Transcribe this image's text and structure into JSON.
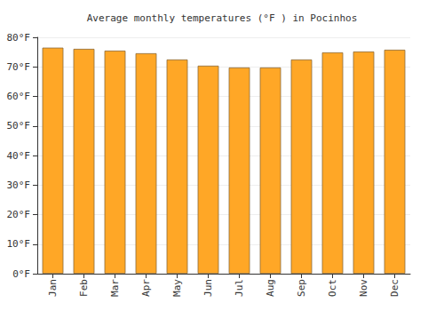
{
  "chart_data": {
    "type": "bar",
    "title": "Average monthly temperatures (°F ) in Pocinhos",
    "categories": [
      "Jan",
      "Feb",
      "Mar",
      "Apr",
      "May",
      "Jun",
      "Jul",
      "Aug",
      "Sep",
      "Oct",
      "Nov",
      "Dec"
    ],
    "values": [
      76.5,
      76.1,
      75.5,
      74.6,
      72.5,
      70.4,
      69.8,
      69.8,
      72.5,
      74.9,
      75.2,
      75.8
    ],
    "color": "#ffa726",
    "ylim": [
      0,
      80
    ],
    "yticks": [
      {
        "value": 0,
        "label": "0°F"
      },
      {
        "value": 10,
        "label": "10°F"
      },
      {
        "value": 20,
        "label": "20°F"
      },
      {
        "value": 30,
        "label": "30°F"
      },
      {
        "value": 40,
        "label": "40°F"
      },
      {
        "value": 50,
        "label": "50°F"
      },
      {
        "value": 60,
        "label": "60°F"
      },
      {
        "value": 70,
        "label": "70°F"
      },
      {
        "value": 80,
        "label": "80°F"
      }
    ],
    "grid": true
  }
}
